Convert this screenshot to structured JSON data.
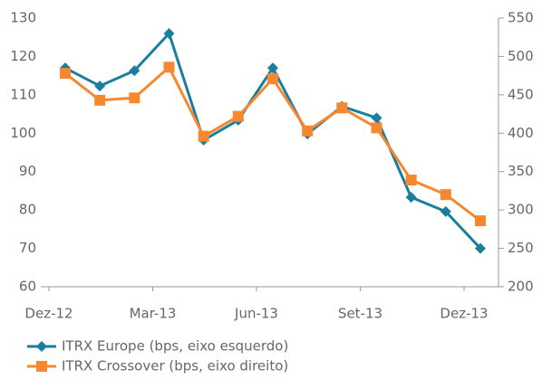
{
  "chart_data": {
    "type": "line",
    "categories": [
      "Dez-12",
      null,
      null,
      "Mar-13",
      null,
      null,
      "Jun-13",
      null,
      null,
      "Set-13",
      null,
      null,
      "Dez-13"
    ],
    "series": [
      {
        "name": "ITRX Europe (bps, eixo esquerdo)",
        "color": "#1b7e9e",
        "marker": "diamond",
        "axis": "y",
        "values": [
          117,
          112.3,
          116.3,
          126,
          98.2,
          103.4,
          117,
          99.8,
          107,
          104,
          83.3,
          79.6,
          70
        ]
      },
      {
        "name": "ITRX Crossover (bps, eixo direito)",
        "color": "#f7882f",
        "marker": "square",
        "axis": "y2",
        "values": [
          478,
          443,
          446,
          486,
          396,
          422,
          471,
          403,
          433,
          407,
          339,
          320,
          286
        ]
      }
    ],
    "ylim": [
      60,
      130
    ],
    "yticks": [
      60,
      70,
      80,
      90,
      100,
      110,
      120,
      130
    ],
    "y2lim": [
      200,
      550
    ],
    "y2ticks": [
      200,
      250,
      300,
      350,
      400,
      450,
      500,
      550
    ],
    "grid": false
  }
}
